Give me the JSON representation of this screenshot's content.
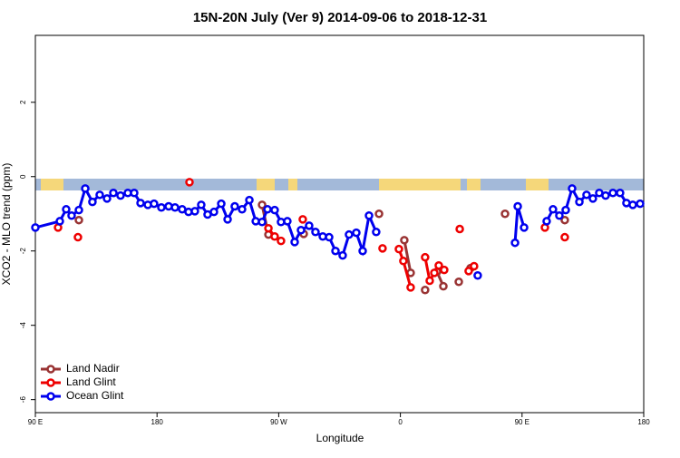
{
  "chart_data": {
    "type": "line",
    "title": "15N-20N July (Ver 9)   2014-09-06 to 2018-12-31",
    "x_label": "Longitude",
    "y_label": "XCO2 - MLO trend (ppm)",
    "xlim": [
      90,
      540
    ],
    "ylim": [
      -6.35,
      3.8
    ],
    "xticks": [
      {
        "value": 90,
        "label": "90 E"
      },
      180,
      {
        "value": 270,
        "label": "90 W"
      },
      {
        "value": 360,
        "label": "0"
      },
      {
        "value": 450,
        "label": "90 E"
      },
      {
        "value": 540,
        "label": "180"
      }
    ],
    "yticks": [
      -6,
      -4,
      -2,
      0,
      2
    ],
    "legend": "bottom-left",
    "series": [
      {
        "name": "Land Nadir",
        "color": "#993333",
        "x": [
          122.2,
          null,
          257.7,
          262.4,
          null,
          288.5,
          null,
          344.2,
          null,
          362.9,
          367.6,
          null,
          378.3,
          null,
          387.1,
          391.8,
          null,
          403.2,
          null,
          411.9,
          null,
          437.4,
          null,
          481.6
        ],
        "values": [
          -1.17,
          null,
          -0.76,
          -1.56,
          null,
          -1.54,
          null,
          -1.0,
          null,
          -1.71,
          -2.59,
          null,
          -3.05,
          null,
          -2.56,
          -2.95,
          null,
          -2.83,
          null,
          -2.46,
          null,
          -1.0,
          null,
          -1.17
        ]
      },
      {
        "name": "Land Glint",
        "color": "#ee0000",
        "x": [
          106.8,
          null,
          121.5,
          null,
          204,
          null,
          262.4,
          267,
          271.7,
          null,
          287.8,
          null,
          346.8,
          null,
          358.9,
          362.2,
          367.6,
          null,
          378.3,
          381.7,
          385.1,
          388.4,
          392.4,
          null,
          403.9,
          null,
          410.5,
          414.5,
          null,
          466.9,
          null,
          481.6
        ],
        "values": [
          -1.37,
          null,
          -1.63,
          null,
          -0.15,
          null,
          -1.39,
          -1.61,
          -1.73,
          null,
          -1.15,
          null,
          -1.93,
          null,
          -1.95,
          -2.27,
          -2.98,
          null,
          -2.17,
          -2.8,
          -2.59,
          -2.39,
          -2.51,
          null,
          -1.41,
          null,
          -2.54,
          -2.41,
          null,
          -1.37,
          null,
          -1.63
        ]
      },
      {
        "name": "Ocean Glint",
        "color": "#0000ee",
        "x": [
          90,
          108.1,
          112.8,
          116.8,
          122.2,
          126.9,
          132.2,
          137.6,
          143,
          147.7,
          153,
          158.4,
          163.1,
          167.8,
          173.2,
          177.8,
          183.2,
          188.6,
          193.3,
          198.6,
          203.3,
          208,
          212.7,
          217.4,
          222.1,
          227.5,
          232.2,
          237.5,
          242.9,
          248.3,
          253,
          257.7,
          261.7,
          267,
          271.7,
          276.4,
          281.8,
          286.5,
          292.5,
          297.2,
          302.6,
          307.3,
          312,
          317.3,
          322,
          327.4,
          332.1,
          336.8,
          342.1,
          null,
          417.2,
          null,
          444.8,
          446.8,
          451.5,
          null,
          468.2,
          472.9,
          477.6,
          482.3,
          487,
          492.4,
          497.7,
          502.4,
          507.1,
          511.8,
          517.2,
          522.5,
          527.2,
          531.9,
          537.3
        ],
        "values": [
          -1.37,
          -1.2,
          -0.88,
          -1.05,
          -0.9,
          -0.32,
          -0.68,
          -0.49,
          -0.59,
          -0.44,
          -0.51,
          -0.44,
          -0.44,
          -0.71,
          -0.76,
          -0.73,
          -0.83,
          -0.8,
          -0.83,
          -0.88,
          -0.95,
          -0.93,
          -0.76,
          -1.02,
          -0.95,
          -0.73,
          -1.15,
          -0.8,
          -0.88,
          -0.63,
          -1.2,
          -1.22,
          -0.88,
          -0.9,
          -1.22,
          -1.2,
          -1.76,
          -1.44,
          -1.32,
          -1.49,
          -1.61,
          -1.63,
          -2.0,
          -2.12,
          -1.56,
          -1.51,
          -2.0,
          -1.05,
          -1.49,
          null,
          -2.66,
          null,
          -1.78,
          -0.8,
          -1.37,
          null,
          -1.2,
          -0.88,
          -1.05,
          -0.9,
          -0.32,
          -0.68,
          -0.49,
          -0.59,
          -0.44,
          -0.51,
          -0.44,
          -0.44,
          -0.71,
          -0.76,
          -0.73
        ]
      }
    ]
  }
}
